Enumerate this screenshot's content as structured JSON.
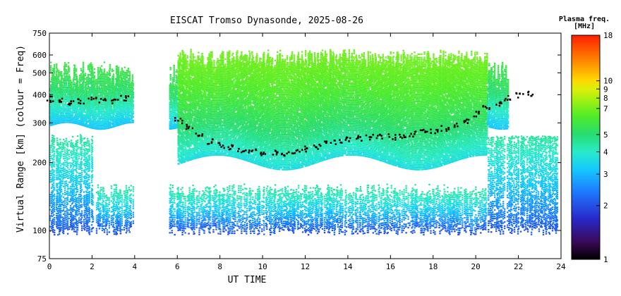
{
  "chart_data": {
    "type": "heatmap",
    "title": "EISCAT Tromso Dynasonde, 2025-08-26",
    "xlabel": "UT TIME",
    "ylabel": "Virtual Range [km] (colour = Freq)",
    "xlim": [
      0,
      24
    ],
    "ylim": [
      75,
      750
    ],
    "yscale": "log",
    "xticks": [
      "0",
      "2",
      "4",
      "6",
      "8",
      "10",
      "12",
      "14",
      "16",
      "18",
      "20",
      "22",
      "24"
    ],
    "yticks": [
      "75",
      "100",
      "200",
      "300",
      "400",
      "500",
      "600",
      "750"
    ],
    "colorbar": {
      "title": "Plasma freq.",
      "unit": "[MHz]",
      "scale": "log",
      "range": [
        1,
        18
      ],
      "ticks": [
        "1",
        "2",
        "3",
        "4",
        "5",
        "7",
        "8",
        "9",
        "10",
        "18"
      ]
    },
    "layers": [
      {
        "name": "F region echoes",
        "t_start": 0.0,
        "t_end": 21.5,
        "typical_range_km": [
          200,
          640
        ],
        "typical_freq_mhz": [
          3,
          5.5
        ]
      },
      {
        "name": "E region echoes",
        "t_start": 0.0,
        "t_end": 23.8,
        "typical_range_km": [
          95,
          270
        ],
        "typical_freq_mhz": [
          2,
          3.5
        ]
      }
    ],
    "peak_trace": {
      "name": "black peak trace",
      "points": [
        [
          0.0,
          385
        ],
        [
          0.5,
          380
        ],
        [
          1.0,
          370
        ],
        [
          1.5,
          375
        ],
        [
          2.0,
          385
        ],
        [
          2.5,
          380
        ],
        [
          3.0,
          380
        ],
        [
          3.5,
          390
        ],
        [
          6.0,
          310
        ],
        [
          6.5,
          290
        ],
        [
          7.0,
          270
        ],
        [
          7.5,
          250
        ],
        [
          8.0,
          240
        ],
        [
          8.5,
          235
        ],
        [
          9.0,
          230
        ],
        [
          9.5,
          225
        ],
        [
          10.0,
          222
        ],
        [
          10.5,
          225
        ],
        [
          11.0,
          220
        ],
        [
          11.5,
          225
        ],
        [
          12.0,
          232
        ],
        [
          12.5,
          238
        ],
        [
          13.0,
          245
        ],
        [
          13.5,
          250
        ],
        [
          14.0,
          255
        ],
        [
          14.5,
          258
        ],
        [
          15.0,
          262
        ],
        [
          15.5,
          265
        ],
        [
          16.0,
          262
        ],
        [
          16.5,
          265
        ],
        [
          17.0,
          270
        ],
        [
          17.5,
          275
        ],
        [
          18.0,
          280
        ],
        [
          18.5,
          285
        ],
        [
          19.0,
          295
        ],
        [
          19.5,
          310
        ],
        [
          20.0,
          330
        ],
        [
          20.5,
          350
        ],
        [
          21.0,
          370
        ],
        [
          21.5,
          390
        ],
        [
          22.0,
          400
        ],
        [
          22.5,
          410
        ]
      ]
    }
  }
}
